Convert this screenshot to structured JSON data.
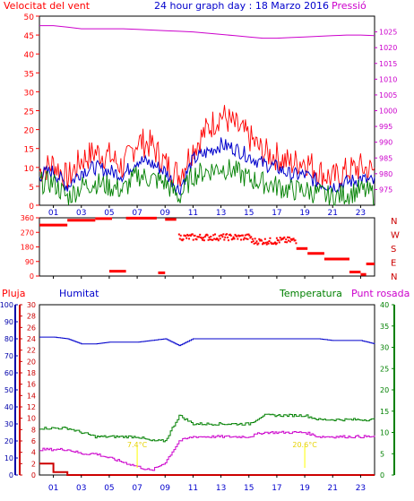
{
  "header": {
    "title_left": "Velocitat del vent",
    "title_center": "24 hour graph day : 18 Marzo 2016",
    "title_right": "Pressió"
  },
  "colors": {
    "red": "#ff0000",
    "green": "#008000",
    "blue": "#0000cc",
    "magenta": "#cc00cc",
    "darkred": "#cc0000",
    "yellow": "#ffff00",
    "axis_blue": "#0000aa"
  },
  "chart_data": [
    {
      "type": "line",
      "title": "Velocitat del vent / Pressió",
      "ylabel": "Velocitat del vent",
      "y2label": "Pressió",
      "ylim": [
        0,
        50
      ],
      "y2lim": [
        970,
        1030
      ],
      "yticks": [
        "0",
        "5",
        "10",
        "15",
        "20",
        "25",
        "30",
        "35",
        "40",
        "45",
        "50"
      ],
      "y2ticks": [
        "975",
        "980",
        "985",
        "990",
        "995",
        "1000",
        "1005",
        "1010",
        "1015",
        "1020",
        "1025"
      ],
      "x_hours": [
        0,
        1,
        2,
        3,
        4,
        5,
        6,
        7,
        8,
        9,
        10,
        11,
        12,
        13,
        14,
        15,
        16,
        17,
        18,
        19,
        20,
        21,
        22,
        23,
        24
      ],
      "xticks": [
        "01",
        "03",
        "05",
        "07",
        "09",
        "11",
        "13",
        "15",
        "17",
        "19",
        "21",
        "23"
      ],
      "series": [
        {
          "name": "Gust",
          "color": "red",
          "values": [
            9,
            11,
            7,
            12,
            14,
            13,
            10,
            17,
            16,
            11,
            8,
            15,
            20,
            24,
            21,
            18,
            14,
            13,
            11,
            12,
            9,
            7,
            9,
            10,
            9
          ]
        },
        {
          "name": "Average",
          "color": "blue",
          "values": [
            8,
            9,
            5,
            9,
            10,
            9,
            8,
            12,
            11,
            9,
            4,
            12,
            14,
            16,
            15,
            13,
            11,
            10,
            8,
            8,
            6,
            5,
            6,
            7,
            6
          ]
        },
        {
          "name": "Min",
          "color": "green",
          "values": [
            6,
            6,
            2,
            5,
            6,
            5,
            4,
            8,
            7,
            6,
            2,
            8,
            9,
            10,
            9,
            7,
            6,
            5,
            4,
            4,
            3,
            2,
            3,
            4,
            3
          ]
        },
        {
          "name": "Pressió",
          "color": "magenta",
          "values": [
            1027,
            1027,
            1026.5,
            1026,
            1026,
            1026,
            1026,
            1025.8,
            1025.6,
            1025.4,
            1025.2,
            1025,
            1024.6,
            1024.2,
            1023.8,
            1023.4,
            1023,
            1023,
            1023.2,
            1023.4,
            1023.6,
            1023.8,
            1024,
            1024,
            1023.8
          ]
        }
      ]
    },
    {
      "type": "scatter",
      "title": "Direcció del vent",
      "ylim": [
        0,
        360
      ],
      "yticks": [
        "0",
        "90",
        "180",
        "270",
        "360"
      ],
      "dir_labels": [
        "N",
        "W",
        "S",
        "E",
        "N"
      ],
      "xticks": [
        "01",
        "03",
        "05",
        "07",
        "09",
        "11",
        "13",
        "15",
        "17",
        "19",
        "21",
        "23"
      ],
      "segments": [
        {
          "x0": 0,
          "x1": 2.0,
          "y": 315
        },
        {
          "x0": 2.0,
          "x1": 4.0,
          "y": 345
        },
        {
          "x0": 4.0,
          "x1": 5.2,
          "y": 355
        },
        {
          "x0": 5.0,
          "x1": 6.2,
          "y": 30
        },
        {
          "x0": 6.2,
          "x1": 8.4,
          "y": 358
        },
        {
          "x0": 8.5,
          "x1": 9.0,
          "y": 20
        },
        {
          "x0": 9.0,
          "x1": 9.8,
          "y": 350
        },
        {
          "x0": 10.0,
          "x1": 15.2,
          "y": 240
        },
        {
          "x0": 15.2,
          "x1": 17.0,
          "y": 215
        },
        {
          "x0": 17.0,
          "x1": 18.4,
          "y": 220
        },
        {
          "x0": 18.4,
          "x1": 19.2,
          "y": 170
        },
        {
          "x0": 19.2,
          "x1": 20.4,
          "y": 140
        },
        {
          "x0": 20.4,
          "x1": 22.2,
          "y": 105
        },
        {
          "x0": 22.2,
          "x1": 23.0,
          "y": 25
        },
        {
          "x0": 23.0,
          "x1": 23.4,
          "y": 10
        },
        {
          "x0": 23.4,
          "x1": 24.0,
          "y": 75
        }
      ]
    },
    {
      "type": "line",
      "title": "Pluja / Humitat / Temperatura / Punt rosada",
      "labels": {
        "rain": "Pluja",
        "humidity": "Humitat",
        "temperature": "Temperatura",
        "dewpoint": "Punt rosada"
      },
      "rain_ylim": [
        0,
        30
      ],
      "rain_ticks": [
        "0",
        "2",
        "4",
        "6",
        "8",
        "10",
        "12",
        "14",
        "16",
        "18",
        "20",
        "22",
        "24",
        "26",
        "28",
        "30"
      ],
      "hum_ylim": [
        0,
        100
      ],
      "hum_ticks": [
        "0",
        "10",
        "20",
        "30",
        "40",
        "50",
        "60",
        "70",
        "80",
        "90",
        "100"
      ],
      "temp_ylim": [
        0,
        40
      ],
      "temp_ticks": [
        "0",
        "5",
        "10",
        "15",
        "20",
        "25",
        "30",
        "35",
        "40"
      ],
      "xticks": [
        "01",
        "03",
        "05",
        "07",
        "09",
        "11",
        "13",
        "15",
        "17",
        "19",
        "21",
        "23"
      ],
      "series": [
        {
          "name": "Humitat",
          "color": "blue",
          "values": [
            81,
            81,
            80,
            77,
            77,
            78,
            78,
            78,
            79,
            80,
            76,
            80,
            80,
            80,
            80,
            80,
            80,
            80,
            80,
            80,
            80,
            79,
            79,
            79,
            77
          ]
        },
        {
          "name": "Temperatura",
          "color": "green",
          "values": [
            11,
            11,
            11,
            10,
            9,
            9,
            9,
            9,
            8,
            8,
            14,
            12,
            12,
            12,
            12,
            12,
            14,
            14,
            14,
            14,
            13,
            13,
            13,
            13,
            13
          ]
        },
        {
          "name": "Punt rosada",
          "color": "magenta",
          "values": [
            6,
            6,
            6,
            5,
            5,
            4,
            3,
            2,
            1,
            3,
            8,
            9,
            9,
            9,
            9,
            9,
            10,
            10,
            10,
            10,
            9,
            9,
            9,
            9,
            9
          ]
        },
        {
          "name": "Pluja",
          "color": "darkred",
          "values": [
            2,
            0.5,
            0,
            0,
            0,
            0,
            0,
            0,
            0,
            0,
            0,
            0,
            0,
            0,
            0,
            0,
            0,
            0,
            0,
            0,
            0,
            0,
            0,
            0,
            0
          ]
        }
      ],
      "annotations": [
        {
          "text": "7.4°C",
          "hour": 7.0
        },
        {
          "text": "20.6°C",
          "hour": 19.0
        }
      ]
    }
  ]
}
